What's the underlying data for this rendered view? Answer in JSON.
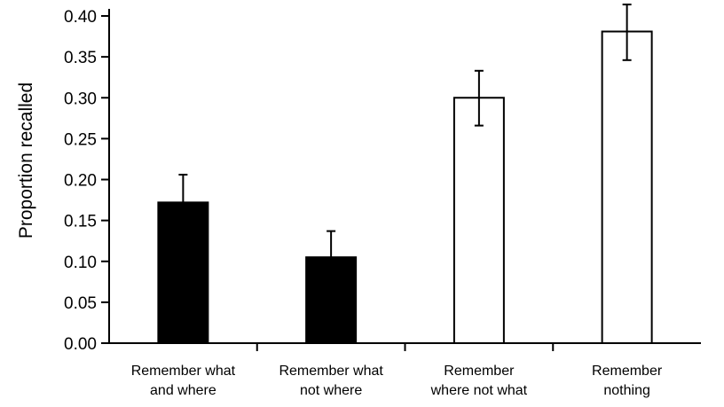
{
  "chart_data": {
    "type": "bar",
    "ylabel": "Proportion recalled",
    "xlabel": "",
    "ylim": [
      0,
      0.4
    ],
    "yticks": [
      "0.00",
      "0.05",
      "0.10",
      "0.15",
      "0.20",
      "0.25",
      "0.30",
      "0.35",
      "0.40"
    ],
    "grid": false,
    "categories": [
      {
        "line1": "Remember what",
        "line2": "and where"
      },
      {
        "line1": "Remember what",
        "line2": "not where"
      },
      {
        "line1": "Remember",
        "line2": "where not what"
      },
      {
        "line1": "Remember",
        "line2": "nothing"
      }
    ],
    "values": [
      0.172,
      0.105,
      0.3,
      0.381
    ],
    "error_upper": [
      0.206,
      0.137,
      0.333,
      0.414
    ],
    "error_lower": [
      null,
      null,
      0.266,
      0.346
    ],
    "fills": [
      "#000000",
      "#000000",
      "#ffffff",
      "#ffffff"
    ]
  }
}
